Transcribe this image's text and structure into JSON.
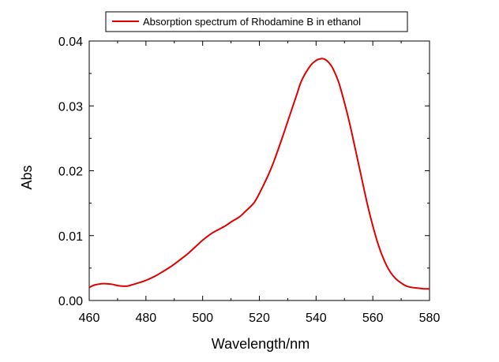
{
  "chart_data": {
    "type": "line",
    "xlabel": "Wavelength/nm",
    "ylabel": "Abs",
    "xlim": [
      460,
      580
    ],
    "ylim": [
      0,
      0.04
    ],
    "xticks": [
      "460",
      "480",
      "500",
      "520",
      "540",
      "560",
      "580"
    ],
    "yticks": [
      "0.00",
      "0.01",
      "0.02",
      "0.03",
      "0.04"
    ],
    "legend_position": "top-center",
    "grid": false,
    "series": [
      {
        "name": "Absorption spectrum of Rhodamine B in ethanol",
        "color": "#e00000",
        "x": [
          460,
          462,
          465,
          468,
          470,
          473,
          475,
          478,
          480,
          483,
          485,
          488,
          490,
          493,
          495,
          498,
          500,
          503,
          505,
          508,
          510,
          513,
          515,
          518,
          520,
          523,
          525,
          528,
          530,
          533,
          535,
          538,
          540,
          541,
          542,
          543,
          544,
          545,
          546,
          548,
          550,
          552,
          554,
          556,
          558,
          560,
          562,
          564,
          566,
          568,
          570,
          572,
          574,
          576,
          578,
          580
        ],
        "y": [
          0.002,
          0.0024,
          0.0026,
          0.0025,
          0.0023,
          0.0022,
          0.0024,
          0.0028,
          0.0031,
          0.0037,
          0.0042,
          0.005,
          0.0056,
          0.0066,
          0.0073,
          0.0085,
          0.0093,
          0.0103,
          0.0108,
          0.0115,
          0.0121,
          0.0129,
          0.0137,
          0.015,
          0.0165,
          0.0192,
          0.0213,
          0.025,
          0.0276,
          0.0315,
          0.034,
          0.0362,
          0.037,
          0.0372,
          0.0373,
          0.0372,
          0.0369,
          0.0364,
          0.0357,
          0.0336,
          0.0305,
          0.027,
          0.023,
          0.019,
          0.015,
          0.0115,
          0.0085,
          0.0062,
          0.0045,
          0.0034,
          0.0027,
          0.0022,
          0.002,
          0.0019,
          0.0018,
          0.0018
        ]
      }
    ]
  }
}
